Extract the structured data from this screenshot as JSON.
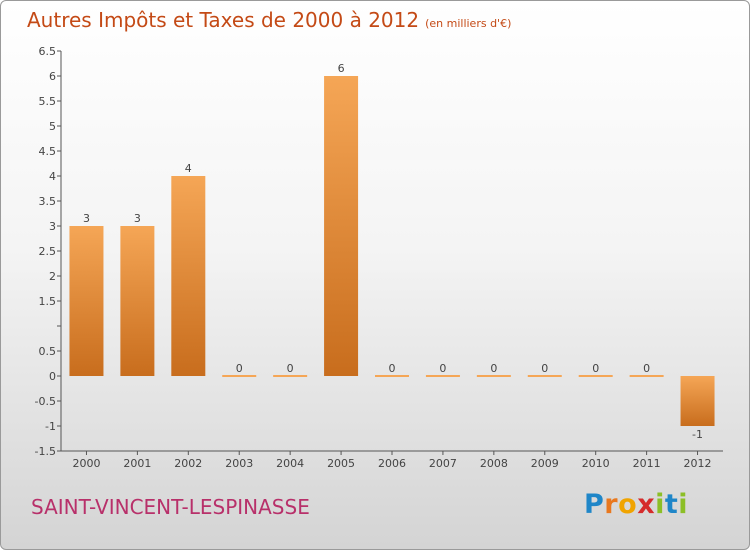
{
  "title": {
    "main": "Autres Impôts et Taxes de 2000 à 2012",
    "unit": "(en milliers d'€)"
  },
  "commune": "SAINT-VINCENT-LESPINASSE",
  "logo": {
    "letters": [
      "P",
      "r",
      "o",
      "x",
      "i",
      "t",
      "i"
    ],
    "colors": [
      "#1f86c8",
      "#e9781e",
      "#f0a400",
      "#d52b2b",
      "#8cbf26",
      "#1f86c8",
      "#8cbf26"
    ]
  },
  "colors": {
    "bar_light": "#f5a656",
    "bar_dark": "#c86d1d",
    "title": "#c44a16",
    "commune": "#b8306a"
  },
  "chart_data": {
    "type": "bar",
    "categories": [
      "2000",
      "2001",
      "2002",
      "2003",
      "2004",
      "2005",
      "2006",
      "2007",
      "2008",
      "2009",
      "2010",
      "2011",
      "2012"
    ],
    "values": [
      3,
      3,
      4,
      0,
      0,
      6,
      0,
      0,
      0,
      0,
      0,
      0,
      -1
    ],
    "data_labels": [
      "3",
      "3",
      "4",
      "0",
      "0",
      "6",
      "0",
      "0",
      "0",
      "0",
      "0",
      "0",
      "-1"
    ],
    "ylim": [
      -1.5,
      6.5
    ],
    "yticks": [
      -1.5,
      -1,
      -0.5,
      0,
      0.5,
      1,
      1.5,
      2,
      2.5,
      3,
      3.5,
      4,
      4.5,
      5,
      5.5,
      6,
      6.5
    ],
    "ytick_labels": [
      "-1.5",
      "-1",
      "-0.5",
      "0",
      "0.5",
      "",
      "1.5",
      "2",
      "2.5",
      "3",
      "3.5",
      "4",
      "4.5",
      "5",
      "5.5",
      "6",
      "6.5"
    ],
    "xlabel": "",
    "ylabel": "",
    "grid": false
  }
}
